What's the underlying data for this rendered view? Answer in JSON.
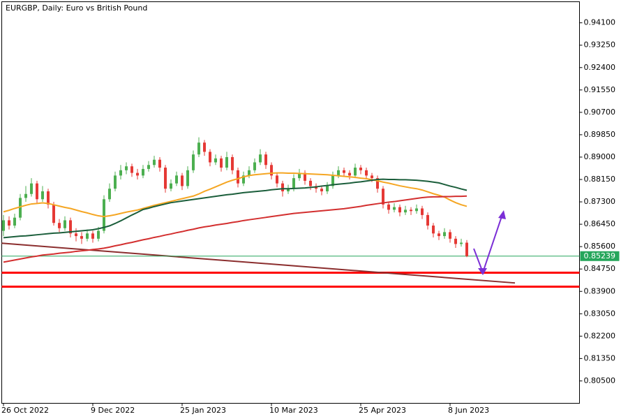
{
  "chart_data": {
    "type": "candlestick",
    "title": "EURGBP, Daily:  Euro vs British Pound",
    "categories": [
      "26 Oct 2022",
      null,
      null,
      null,
      null,
      null,
      null,
      null,
      null,
      null,
      null,
      null,
      null,
      null,
      null,
      null,
      "9 Dec 2022",
      null,
      null,
      null,
      null,
      null,
      null,
      null,
      null,
      null,
      null,
      null,
      null,
      null,
      null,
      null,
      "25 Jan 2023",
      null,
      null,
      null,
      null,
      null,
      null,
      null,
      null,
      null,
      null,
      null,
      null,
      null,
      null,
      null,
      "10 Mar 2023",
      null,
      null,
      null,
      null,
      null,
      null,
      null,
      null,
      null,
      null,
      null,
      null,
      null,
      null,
      null,
      "25 Apr 2023",
      null,
      null,
      null,
      null,
      null,
      null,
      null,
      null,
      null,
      null,
      null,
      null,
      null,
      null,
      null,
      "8 Jun 2023",
      null,
      null,
      null
    ],
    "open": [
      0.862,
      0.866,
      0.864,
      0.867,
      0.8745,
      0.876,
      0.88,
      0.874,
      0.877,
      0.872,
      0.865,
      0.863,
      0.866,
      0.861,
      0.86,
      0.859,
      0.861,
      0.859,
      0.862,
      0.874,
      0.878,
      0.883,
      0.885,
      0.8865,
      0.884,
      0.883,
      0.8855,
      0.887,
      0.889,
      0.886,
      0.878,
      0.88,
      0.883,
      0.879,
      0.885,
      0.891,
      0.8955,
      0.892,
      0.888,
      0.8895,
      0.886,
      0.89,
      0.885,
      0.88,
      0.883,
      0.885,
      0.888,
      0.891,
      0.887,
      0.883,
      0.88,
      0.877,
      0.878,
      0.882,
      0.884,
      0.881,
      0.879,
      0.878,
      0.877,
      0.879,
      0.883,
      0.885,
      0.884,
      0.883,
      0.886,
      0.885,
      0.883,
      0.882,
      0.878,
      0.872,
      0.87,
      0.871,
      0.869,
      0.87,
      0.8695,
      0.8705,
      0.868,
      0.864,
      0.861,
      0.86,
      0.8615,
      0.859,
      0.857,
      0.8575
    ],
    "high": [
      0.868,
      0.8675,
      0.8685,
      0.876,
      0.879,
      0.882,
      0.881,
      0.879,
      0.878,
      0.873,
      0.8665,
      0.8675,
      0.867,
      0.863,
      0.8615,
      0.8625,
      0.862,
      0.8635,
      0.8755,
      0.88,
      0.8845,
      0.887,
      0.888,
      0.8875,
      0.8855,
      0.887,
      0.8885,
      0.8905,
      0.89,
      0.887,
      0.8815,
      0.8845,
      0.884,
      0.8865,
      0.8925,
      0.8975,
      0.8965,
      0.893,
      0.891,
      0.8905,
      0.892,
      0.891,
      0.886,
      0.8845,
      0.8865,
      0.8895,
      0.893,
      0.892,
      0.888,
      0.884,
      0.881,
      0.8795,
      0.8835,
      0.8855,
      0.885,
      0.882,
      0.88,
      0.879,
      0.8805,
      0.8845,
      0.8865,
      0.886,
      0.885,
      0.8875,
      0.887,
      0.886,
      0.884,
      0.883,
      0.879,
      0.873,
      0.8725,
      0.872,
      0.8715,
      0.871,
      0.872,
      0.8715,
      0.869,
      0.865,
      0.862,
      0.863,
      0.8625,
      0.86,
      0.859,
      0.8585
    ],
    "low": [
      0.86,
      0.8625,
      0.863,
      0.866,
      0.873,
      0.875,
      0.8725,
      0.873,
      0.8705,
      0.864,
      0.8615,
      0.862,
      0.8595,
      0.858,
      0.857,
      0.858,
      0.8575,
      0.858,
      0.861,
      0.873,
      0.877,
      0.8815,
      0.8835,
      0.8825,
      0.8815,
      0.882,
      0.8845,
      0.886,
      0.8845,
      0.8765,
      0.877,
      0.879,
      0.8775,
      0.878,
      0.884,
      0.89,
      0.8905,
      0.8865,
      0.887,
      0.8845,
      0.885,
      0.8835,
      0.8785,
      0.879,
      0.882,
      0.884,
      0.887,
      0.8855,
      0.8815,
      0.8785,
      0.875,
      0.876,
      0.877,
      0.881,
      0.8795,
      0.8775,
      0.8765,
      0.8755,
      0.876,
      0.878,
      0.882,
      0.8825,
      0.8815,
      0.882,
      0.8835,
      0.8815,
      0.8805,
      0.8765,
      0.8705,
      0.8685,
      0.869,
      0.8675,
      0.868,
      0.868,
      0.8685,
      0.8665,
      0.8625,
      0.8595,
      0.8585,
      0.859,
      0.8575,
      0.8555,
      0.856,
      0.852
    ],
    "close": [
      0.866,
      0.864,
      0.867,
      0.8745,
      0.876,
      0.88,
      0.874,
      0.877,
      0.872,
      0.865,
      0.863,
      0.866,
      0.861,
      0.86,
      0.859,
      0.861,
      0.859,
      0.862,
      0.874,
      0.878,
      0.883,
      0.885,
      0.8865,
      0.884,
      0.883,
      0.8855,
      0.887,
      0.889,
      0.886,
      0.878,
      0.88,
      0.883,
      0.879,
      0.885,
      0.891,
      0.8955,
      0.892,
      0.888,
      0.8895,
      0.886,
      0.89,
      0.885,
      0.88,
      0.883,
      0.885,
      0.888,
      0.891,
      0.887,
      0.883,
      0.88,
      0.877,
      0.878,
      0.882,
      0.884,
      0.881,
      0.879,
      0.878,
      0.877,
      0.879,
      0.883,
      0.885,
      0.884,
      0.883,
      0.886,
      0.885,
      0.883,
      0.882,
      0.878,
      0.872,
      0.87,
      0.871,
      0.869,
      0.87,
      0.8695,
      0.8705,
      0.868,
      0.864,
      0.861,
      0.86,
      0.8615,
      0.859,
      0.857,
      0.8575,
      0.85239
    ],
    "up_color": "#4caf50",
    "down_color": "#e53935",
    "moving_averages": [
      {
        "color": "#f5a623",
        "values": [
          0.8692,
          0.8698,
          0.8705,
          0.8711,
          0.8717,
          0.8722,
          0.8724,
          0.8726,
          0.8724,
          0.8719,
          0.8714,
          0.8709,
          0.8705,
          0.8699,
          0.8693,
          0.8688,
          0.8682,
          0.8677,
          0.8674,
          0.8677,
          0.8681,
          0.8686,
          0.8691,
          0.8695,
          0.8699,
          0.8705,
          0.8711,
          0.8717,
          0.8722,
          0.8727,
          0.8732,
          0.8737,
          0.8742,
          0.8747,
          0.8752,
          0.876,
          0.877,
          0.8778,
          0.8787,
          0.8796,
          0.8805,
          0.8812,
          0.8818,
          0.8825,
          0.883,
          0.8833,
          0.8835,
          0.8837,
          0.8839,
          0.884,
          0.884,
          0.8839,
          0.8839,
          0.8838,
          0.8837,
          0.8836,
          0.8835,
          0.8834,
          0.8833,
          0.8831,
          0.8829,
          0.8827,
          0.8825,
          0.8823,
          0.882,
          0.8818,
          0.8814,
          0.881,
          0.8805,
          0.8801,
          0.8796,
          0.8791,
          0.8787,
          0.8783,
          0.878,
          0.8775,
          0.8768,
          0.8761,
          0.8755,
          0.8748,
          0.8737,
          0.8727,
          0.8719,
          0.8713
        ]
      },
      {
        "color": "#1b5e3b",
        "values": [
          0.8594,
          0.8596,
          0.8598,
          0.86,
          0.8601,
          0.8603,
          0.8605,
          0.8607,
          0.8609,
          0.8611,
          0.8612,
          0.8614,
          0.8616,
          0.8618,
          0.862,
          0.8622,
          0.8624,
          0.8628,
          0.8633,
          0.8639,
          0.8648,
          0.8658,
          0.8669,
          0.868,
          0.869,
          0.8701,
          0.8706,
          0.8712,
          0.8717,
          0.8722,
          0.8727,
          0.873,
          0.8733,
          0.8736,
          0.8739,
          0.8742,
          0.8745,
          0.8748,
          0.8751,
          0.8754,
          0.8757,
          0.8759,
          0.8762,
          0.8765,
          0.8767,
          0.8769,
          0.8771,
          0.8773,
          0.8776,
          0.8778,
          0.878,
          0.878,
          0.8781,
          0.8782,
          0.8783,
          0.8785,
          0.8787,
          0.879,
          0.8792,
          0.8795,
          0.8797,
          0.8799,
          0.8801,
          0.8804,
          0.8806,
          0.8809,
          0.8812,
          0.8815,
          0.8816,
          0.8815,
          0.8815,
          0.8814,
          0.8814,
          0.8813,
          0.8812,
          0.881,
          0.8808,
          0.8805,
          0.8802,
          0.8796,
          0.879,
          0.8785,
          0.8779,
          0.8774
        ]
      },
      {
        "color": "#d32f2f",
        "values": [
          0.8501,
          0.8505,
          0.8509,
          0.8513,
          0.8517,
          0.8521,
          0.8524,
          0.8528,
          0.853,
          0.8532,
          0.8535,
          0.8537,
          0.8539,
          0.8542,
          0.8544,
          0.8546,
          0.8549,
          0.8551,
          0.8554,
          0.8558,
          0.8563,
          0.8567,
          0.8572,
          0.8576,
          0.8581,
          0.8586,
          0.859,
          0.8595,
          0.8599,
          0.8604,
          0.8608,
          0.8613,
          0.8617,
          0.8622,
          0.8626,
          0.8631,
          0.8635,
          0.8638,
          0.8642,
          0.8645,
          0.8648,
          0.8652,
          0.8655,
          0.8659,
          0.8662,
          0.8665,
          0.8668,
          0.8671,
          0.8674,
          0.8677,
          0.868,
          0.8683,
          0.8686,
          0.8688,
          0.869,
          0.8692,
          0.8694,
          0.8696,
          0.8698,
          0.87,
          0.8702,
          0.8704,
          0.8707,
          0.871,
          0.8713,
          0.8717,
          0.872,
          0.8723,
          0.8726,
          0.8729,
          0.8731,
          0.8734,
          0.8737,
          0.874,
          0.8743,
          0.8746,
          0.8748,
          0.8749,
          0.8749,
          0.875,
          0.875,
          0.8751,
          0.8751,
          0.8752
        ]
      }
    ],
    "trendline": [
      0.8573,
      0.8422
    ],
    "trendline_color": "#8b2e2e",
    "levels": [
      0.8461,
      0.8408
    ],
    "level_color": "#ff0000",
    "current_price": 0.85239,
    "current_price_color": "#26a65b",
    "ylim": [
      0.7965,
      0.949
    ],
    "yticks": [
      {
        "value": 0.941,
        "label": "0.94100"
      },
      {
        "value": 0.9325,
        "label": "0.93250"
      },
      {
        "value": 0.924,
        "label": "0.92400"
      },
      {
        "value": 0.9155,
        "label": "0.91550"
      },
      {
        "value": 0.907,
        "label": "0.90700"
      },
      {
        "value": 0.8985,
        "label": "0.89850"
      },
      {
        "value": 0.89,
        "label": "0.89000"
      },
      {
        "value": 0.8815,
        "label": "0.88150"
      },
      {
        "value": 0.873,
        "label": "0.87300"
      },
      {
        "value": 0.8645,
        "label": "0.86450"
      },
      {
        "value": 0.856,
        "label": "0.85600"
      },
      {
        "value": 0.8475,
        "label": "0.84750"
      },
      {
        "value": 0.839,
        "label": "0.83900"
      },
      {
        "value": 0.8305,
        "label": "0.83050"
      },
      {
        "value": 0.822,
        "label": "0.82200"
      },
      {
        "value": 0.8135,
        "label": "0.81350"
      },
      {
        "value": 0.805,
        "label": "0.80500"
      }
    ]
  }
}
